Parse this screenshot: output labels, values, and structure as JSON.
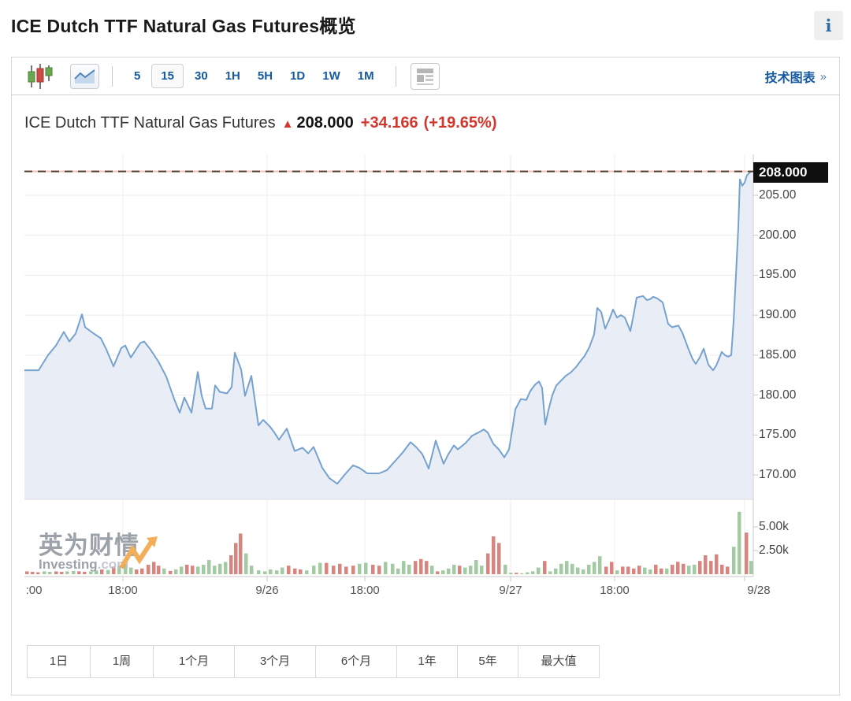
{
  "page": {
    "title": "ICE Dutch TTF Natural Gas Futures概览",
    "info_icon": "i"
  },
  "toolbar": {
    "candlestick_icon": "candlestick-chart",
    "area_icon": "area-chart",
    "news_icon": "news-panel",
    "intervals": [
      {
        "label": "5",
        "selected": false
      },
      {
        "label": "15",
        "selected": true
      },
      {
        "label": "30",
        "selected": false
      },
      {
        "label": "1H",
        "selected": false
      },
      {
        "label": "5H",
        "selected": false
      },
      {
        "label": "1D",
        "selected": false
      },
      {
        "label": "1W",
        "selected": false
      },
      {
        "label": "1M",
        "selected": false
      }
    ],
    "link": "技术图表",
    "link_arrow": "»"
  },
  "chart_header": {
    "name": "ICE Dutch TTF Natural Gas Futures",
    "arrow": "▲",
    "price": "208.000",
    "change": "+34.166",
    "change_pct": "(+19.65%)"
  },
  "current_price_tag": "208.000",
  "watermark": {
    "cn": "英为财情",
    "en": "Investing",
    "domain": ".com"
  },
  "range_buttons": [
    {
      "label": "1日"
    },
    {
      "label": "1周"
    },
    {
      "label": "1个月"
    },
    {
      "label": "3个月"
    },
    {
      "label": "6个月"
    },
    {
      "label": "1年"
    },
    {
      "label": "5年"
    },
    {
      "label": "最大值"
    }
  ],
  "colors": {
    "line": "#76a2cf",
    "fill": "#e9eef6",
    "vol_green": "#a3cba3",
    "vol_red": "#d9847e",
    "dash_dark": "#503c36",
    "dash_light": "#f3c3bb",
    "grid": "#ececec",
    "axis": "#c9c9c9",
    "pane_divider": "#dcdcdc",
    "up_red_text": "#d3362d",
    "link_blue": "#15599f"
  },
  "chart_data": {
    "type": "area",
    "title": "ICE Dutch TTF Natural Gas Futures",
    "current_price": 208.0,
    "change": 34.166,
    "change_pct": 19.65,
    "y_axis": {
      "ticks": [
        205,
        200,
        195,
        190,
        185,
        180,
        175,
        170
      ],
      "range_top": 209.8,
      "range_bottom": 167.0
    },
    "volume_axis": {
      "ticks": [
        5.0,
        2.5
      ],
      "unit": "k"
    },
    "x_axis": {
      "labels": [
        ":00",
        "18:00",
        "9/26",
        "18:00",
        "9/27",
        "18:00",
        "9/28"
      ],
      "label_x": [
        12,
        125,
        308,
        432,
        617,
        749,
        932
      ],
      "grid_x": [
        125,
        308,
        432,
        617,
        749,
        914
      ]
    },
    "price_series": [
      [
        0,
        183.1
      ],
      [
        18,
        183.1
      ],
      [
        30,
        185.0
      ],
      [
        40,
        186.2
      ],
      [
        50,
        187.9
      ],
      [
        57,
        186.7
      ],
      [
        65,
        187.7
      ],
      [
        73,
        190.1
      ],
      [
        77,
        188.5
      ],
      [
        88,
        187.7
      ],
      [
        97,
        187.1
      ],
      [
        104,
        185.7
      ],
      [
        113,
        183.6
      ],
      [
        123,
        185.9
      ],
      [
        128,
        186.2
      ],
      [
        135,
        184.7
      ],
      [
        147,
        186.5
      ],
      [
        152,
        186.7
      ],
      [
        160,
        185.7
      ],
      [
        170,
        184.2
      ],
      [
        180,
        182.3
      ],
      [
        190,
        179.5
      ],
      [
        197,
        177.8
      ],
      [
        203,
        179.7
      ],
      [
        212,
        177.8
      ],
      [
        220,
        182.9
      ],
      [
        225,
        179.9
      ],
      [
        230,
        178.3
      ],
      [
        238,
        178.3
      ],
      [
        242,
        181.2
      ],
      [
        248,
        180.4
      ],
      [
        257,
        180.2
      ],
      [
        263,
        181.0
      ],
      [
        267,
        185.3
      ],
      [
        275,
        183.2
      ],
      [
        280,
        179.9
      ],
      [
        288,
        182.4
      ],
      [
        297,
        176.2
      ],
      [
        303,
        176.9
      ],
      [
        312,
        176.0
      ],
      [
        318,
        175.2
      ],
      [
        323,
        174.4
      ],
      [
        333,
        175.8
      ],
      [
        343,
        173.0
      ],
      [
        353,
        173.4
      ],
      [
        360,
        172.7
      ],
      [
        367,
        173.5
      ],
      [
        378,
        170.9
      ],
      [
        387,
        169.6
      ],
      [
        397,
        168.9
      ],
      [
        407,
        170.1
      ],
      [
        417,
        171.2
      ],
      [
        425,
        170.9
      ],
      [
        435,
        170.2
      ],
      [
        450,
        170.2
      ],
      [
        460,
        170.6
      ],
      [
        470,
        171.7
      ],
      [
        480,
        172.8
      ],
      [
        490,
        174.1
      ],
      [
        497,
        173.5
      ],
      [
        505,
        172.6
      ],
      [
        513,
        170.8
      ],
      [
        522,
        174.3
      ],
      [
        528,
        172.5
      ],
      [
        532,
        171.4
      ],
      [
        538,
        172.6
      ],
      [
        545,
        173.7
      ],
      [
        550,
        173.2
      ],
      [
        560,
        174.0
      ],
      [
        568,
        174.9
      ],
      [
        576,
        175.3
      ],
      [
        583,
        175.7
      ],
      [
        588,
        175.3
      ],
      [
        595,
        173.9
      ],
      [
        602,
        173.2
      ],
      [
        609,
        172.2
      ],
      [
        615,
        173.2
      ],
      [
        619,
        175.6
      ],
      [
        623,
        178.2
      ],
      [
        630,
        179.5
      ],
      [
        637,
        179.4
      ],
      [
        642,
        180.5
      ],
      [
        648,
        181.3
      ],
      [
        653,
        181.7
      ],
      [
        657,
        180.9
      ],
      [
        661,
        176.3
      ],
      [
        665,
        178.1
      ],
      [
        670,
        180.0
      ],
      [
        675,
        181.2
      ],
      [
        681,
        181.8
      ],
      [
        687,
        182.4
      ],
      [
        693,
        182.8
      ],
      [
        700,
        183.5
      ],
      [
        706,
        184.3
      ],
      [
        711,
        184.9
      ],
      [
        717,
        186.0
      ],
      [
        723,
        187.6
      ],
      [
        727,
        190.9
      ],
      [
        732,
        190.4
      ],
      [
        737,
        188.3
      ],
      [
        742,
        189.4
      ],
      [
        747,
        190.7
      ],
      [
        752,
        189.7
      ],
      [
        757,
        190.0
      ],
      [
        762,
        189.7
      ],
      [
        769,
        188.0
      ],
      [
        773,
        190.0
      ],
      [
        777,
        192.2
      ],
      [
        785,
        192.4
      ],
      [
        790,
        191.9
      ],
      [
        794,
        192.0
      ],
      [
        798,
        192.3
      ],
      [
        803,
        192.1
      ],
      [
        810,
        191.6
      ],
      [
        817,
        188.9
      ],
      [
        822,
        188.5
      ],
      [
        830,
        188.7
      ],
      [
        835,
        187.8
      ],
      [
        843,
        185.7
      ],
      [
        848,
        184.5
      ],
      [
        852,
        183.9
      ],
      [
        857,
        184.7
      ],
      [
        862,
        185.8
      ],
      [
        868,
        183.8
      ],
      [
        874,
        183.1
      ],
      [
        878,
        183.7
      ],
      [
        885,
        185.4
      ],
      [
        889,
        185.0
      ],
      [
        893,
        184.8
      ],
      [
        897,
        185.0
      ],
      [
        900,
        189.2
      ],
      [
        903,
        195.0
      ],
      [
        906,
        201.0
      ],
      [
        908,
        207.0
      ],
      [
        911,
        206.2
      ],
      [
        914,
        206.6
      ],
      [
        917,
        207.5
      ],
      [
        921,
        207.9
      ],
      [
        924,
        208.0
      ]
    ],
    "volume_bars": [
      [
        3,
        0.3,
        "r"
      ],
      [
        10,
        0.25,
        "r"
      ],
      [
        17,
        0.2,
        "r"
      ],
      [
        25,
        0.3,
        "g"
      ],
      [
        32,
        0.25,
        "g"
      ],
      [
        40,
        0.3,
        "r"
      ],
      [
        47,
        0.25,
        "r"
      ],
      [
        54,
        0.3,
        "g"
      ],
      [
        62,
        0.35,
        "g"
      ],
      [
        69,
        0.3,
        "r"
      ],
      [
        76,
        0.25,
        "r"
      ],
      [
        84,
        0.3,
        "g"
      ],
      [
        91,
        0.4,
        "g"
      ],
      [
        98,
        0.5,
        "r"
      ],
      [
        106,
        0.45,
        "g"
      ],
      [
        113,
        0.8,
        "r"
      ],
      [
        120,
        0.9,
        "g"
      ],
      [
        128,
        1.0,
        "g"
      ],
      [
        135,
        0.7,
        "g"
      ],
      [
        142,
        0.5,
        "r"
      ],
      [
        149,
        0.6,
        "r"
      ],
      [
        157,
        1.0,
        "r"
      ],
      [
        164,
        1.3,
        "r"
      ],
      [
        170,
        0.9,
        "r"
      ],
      [
        177,
        0.6,
        "g"
      ],
      [
        185,
        0.35,
        "r"
      ],
      [
        192,
        0.5,
        "g"
      ],
      [
        199,
        0.8,
        "g"
      ],
      [
        206,
        1.0,
        "r"
      ],
      [
        213,
        0.9,
        "r"
      ],
      [
        220,
        0.8,
        "g"
      ],
      [
        227,
        1.0,
        "g"
      ],
      [
        234,
        1.5,
        "g"
      ],
      [
        241,
        0.9,
        "g"
      ],
      [
        248,
        1.1,
        "g"
      ],
      [
        255,
        1.3,
        "g"
      ],
      [
        262,
        2.0,
        "r"
      ],
      [
        268,
        3.3,
        "r"
      ],
      [
        274,
        4.3,
        "r"
      ],
      [
        281,
        2.2,
        "g"
      ],
      [
        288,
        0.9,
        "g"
      ],
      [
        297,
        0.4,
        "g"
      ],
      [
        305,
        0.3,
        "g"
      ],
      [
        312,
        0.5,
        "g"
      ],
      [
        320,
        0.4,
        "g"
      ],
      [
        327,
        0.7,
        "g"
      ],
      [
        335,
        0.9,
        "r"
      ],
      [
        343,
        0.6,
        "r"
      ],
      [
        350,
        0.5,
        "r"
      ],
      [
        358,
        0.4,
        "g"
      ],
      [
        367,
        0.9,
        "g"
      ],
      [
        375,
        1.2,
        "g"
      ],
      [
        383,
        1.2,
        "r"
      ],
      [
        392,
        0.9,
        "r"
      ],
      [
        400,
        1.1,
        "r"
      ],
      [
        408,
        0.8,
        "r"
      ],
      [
        417,
        0.9,
        "r"
      ],
      [
        425,
        1.1,
        "g"
      ],
      [
        433,
        1.2,
        "g"
      ],
      [
        442,
        1.0,
        "r"
      ],
      [
        450,
        0.9,
        "r"
      ],
      [
        458,
        1.3,
        "g"
      ],
      [
        467,
        1.1,
        "g"
      ],
      [
        474,
        0.6,
        "g"
      ],
      [
        481,
        1.4,
        "g"
      ],
      [
        488,
        1.0,
        "g"
      ],
      [
        496,
        1.4,
        "r"
      ],
      [
        503,
        1.6,
        "r"
      ],
      [
        510,
        1.4,
        "r"
      ],
      [
        517,
        0.9,
        "g"
      ],
      [
        524,
        0.3,
        "r"
      ],
      [
        531,
        0.4,
        "g"
      ],
      [
        538,
        0.6,
        "g"
      ],
      [
        545,
        1.0,
        "g"
      ],
      [
        552,
        0.9,
        "r"
      ],
      [
        559,
        0.7,
        "g"
      ],
      [
        566,
        0.9,
        "g"
      ],
      [
        573,
        1.5,
        "g"
      ],
      [
        580,
        0.9,
        "g"
      ],
      [
        588,
        2.2,
        "r"
      ],
      [
        595,
        4.0,
        "r"
      ],
      [
        602,
        3.3,
        "r"
      ],
      [
        610,
        1.0,
        "g"
      ],
      [
        617,
        0.15,
        "g"
      ],
      [
        624,
        0.15,
        "r"
      ],
      [
        631,
        0.1,
        "g"
      ],
      [
        638,
        0.2,
        "g"
      ],
      [
        645,
        0.3,
        "g"
      ],
      [
        652,
        0.7,
        "g"
      ],
      [
        660,
        1.4,
        "r"
      ],
      [
        667,
        0.3,
        "g"
      ],
      [
        674,
        0.6,
        "g"
      ],
      [
        681,
        1.1,
        "g"
      ],
      [
        688,
        1.4,
        "g"
      ],
      [
        695,
        1.1,
        "g"
      ],
      [
        702,
        0.7,
        "g"
      ],
      [
        709,
        0.5,
        "g"
      ],
      [
        716,
        1.0,
        "g"
      ],
      [
        723,
        1.3,
        "g"
      ],
      [
        730,
        1.9,
        "g"
      ],
      [
        738,
        0.8,
        "r"
      ],
      [
        745,
        1.3,
        "r"
      ],
      [
        752,
        0.4,
        "g"
      ],
      [
        759,
        0.8,
        "r"
      ],
      [
        766,
        0.8,
        "r"
      ],
      [
        773,
        0.6,
        "r"
      ],
      [
        780,
        0.9,
        "r"
      ],
      [
        787,
        0.7,
        "g"
      ],
      [
        794,
        0.5,
        "g"
      ],
      [
        801,
        1.0,
        "r"
      ],
      [
        808,
        0.6,
        "r"
      ],
      [
        815,
        0.6,
        "g"
      ],
      [
        822,
        1.0,
        "r"
      ],
      [
        829,
        1.3,
        "r"
      ],
      [
        836,
        1.1,
        "r"
      ],
      [
        843,
        0.9,
        "g"
      ],
      [
        850,
        1.0,
        "g"
      ],
      [
        857,
        1.4,
        "r"
      ],
      [
        864,
        2.0,
        "r"
      ],
      [
        871,
        1.4,
        "r"
      ],
      [
        878,
        2.1,
        "r"
      ],
      [
        885,
        1.0,
        "r"
      ],
      [
        892,
        0.8,
        "r"
      ],
      [
        900,
        2.9,
        "g"
      ],
      [
        907,
        6.6,
        "g"
      ],
      [
        916,
        4.4,
        "r"
      ],
      [
        922,
        1.4,
        "g"
      ]
    ]
  }
}
